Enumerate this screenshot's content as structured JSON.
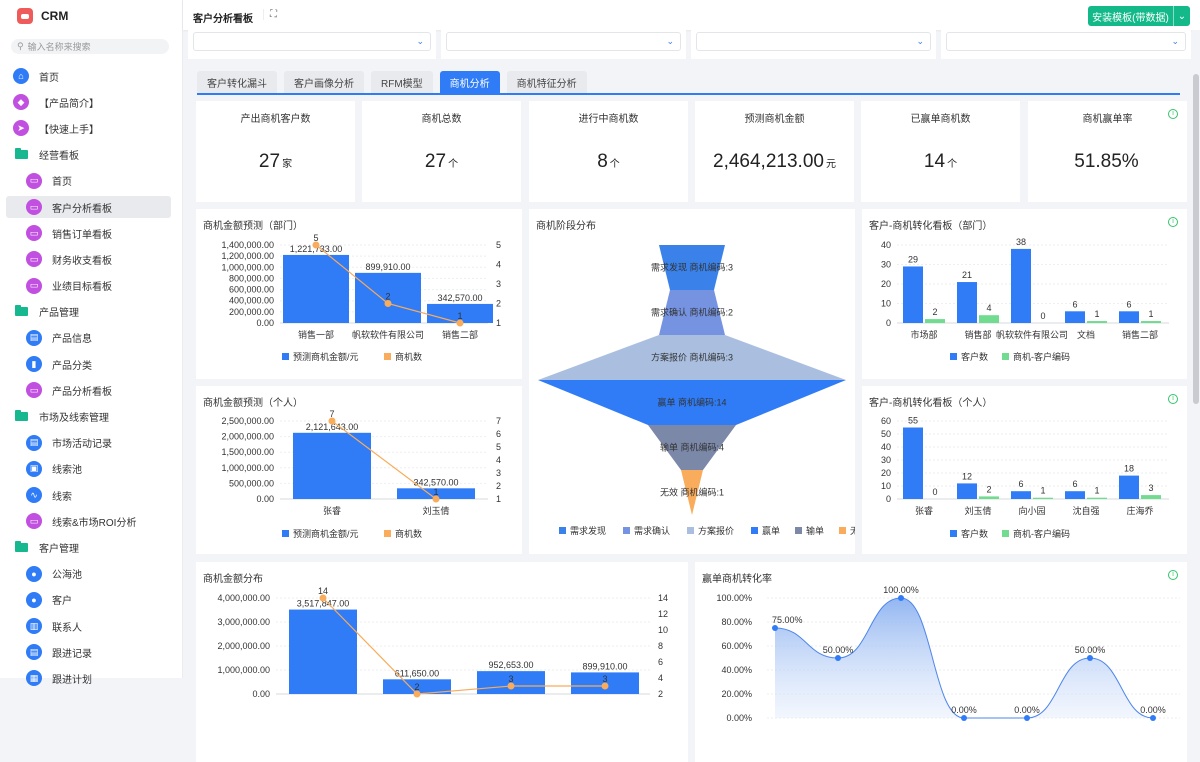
{
  "app": {
    "name": "CRM",
    "search_placeholder": "输入名称来搜索"
  },
  "sidebar": {
    "items": [
      {
        "label": "首页",
        "type": "top",
        "icon": "home-icon",
        "glyph": "⌂",
        "color": "#2f7cf6"
      },
      {
        "label": "【产品简介】",
        "type": "top",
        "icon": "tag-icon",
        "glyph": "◆",
        "color": "#c14fe0"
      },
      {
        "label": "【快速上手】",
        "type": "top",
        "icon": "send-icon",
        "glyph": "➤",
        "color": "#c14fe0"
      },
      {
        "label": "经营看板",
        "type": "group",
        "icon": "folder-icon"
      },
      {
        "label": "首页",
        "type": "sub",
        "icon": "dashboard-icon",
        "glyph": "▭",
        "color": "#c14fe0"
      },
      {
        "label": "客户分析看板",
        "type": "sub",
        "icon": "dashboard-icon",
        "glyph": "▭",
        "color": "#c14fe0",
        "active": true
      },
      {
        "label": "销售订单看板",
        "type": "sub",
        "icon": "dashboard-icon",
        "glyph": "▭",
        "color": "#c14fe0"
      },
      {
        "label": "财务收支看板",
        "type": "sub",
        "icon": "dashboard-icon",
        "glyph": "▭",
        "color": "#c14fe0"
      },
      {
        "label": "业绩目标看板",
        "type": "sub",
        "icon": "dashboard-icon",
        "glyph": "▭",
        "color": "#c14fe0"
      },
      {
        "label": "产品管理",
        "type": "group",
        "icon": "folder-icon"
      },
      {
        "label": "产品信息",
        "type": "sub",
        "icon": "document-icon",
        "glyph": "▤",
        "color": "#2f7cf6"
      },
      {
        "label": "产品分类",
        "type": "sub",
        "icon": "bookmark-icon",
        "glyph": "▮",
        "color": "#2f7cf6"
      },
      {
        "label": "产品分析看板",
        "type": "sub",
        "icon": "dashboard-icon",
        "glyph": "▭",
        "color": "#c14fe0"
      },
      {
        "label": "市场及线索管理",
        "type": "group",
        "icon": "folder-icon"
      },
      {
        "label": "市场活动记录",
        "type": "sub",
        "icon": "document-icon",
        "glyph": "▤",
        "color": "#2f7cf6"
      },
      {
        "label": "线索池",
        "type": "sub",
        "icon": "pool-icon",
        "glyph": "▣",
        "color": "#2f7cf6"
      },
      {
        "label": "线索",
        "type": "sub",
        "icon": "route-icon",
        "glyph": "∿",
        "color": "#2f7cf6"
      },
      {
        "label": "线索&市场ROI分析",
        "type": "sub",
        "icon": "dashboard-icon",
        "glyph": "▭",
        "color": "#c14fe0"
      },
      {
        "label": "客户管理",
        "type": "group",
        "icon": "folder-icon"
      },
      {
        "label": "公海池",
        "type": "sub",
        "icon": "user-icon",
        "glyph": "●",
        "color": "#2f7cf6"
      },
      {
        "label": "客户",
        "type": "sub",
        "icon": "user-icon",
        "glyph": "●",
        "color": "#2f7cf6"
      },
      {
        "label": "联系人",
        "type": "sub",
        "icon": "contact-icon",
        "glyph": "▥",
        "color": "#2f7cf6"
      },
      {
        "label": "跟进记录",
        "type": "sub",
        "icon": "record-icon",
        "glyph": "▤",
        "color": "#2f7cf6"
      },
      {
        "label": "跟进计划",
        "type": "sub",
        "icon": "plan-icon",
        "glyph": "▦",
        "color": "#2f7cf6"
      }
    ]
  },
  "header": {
    "title": "客户分析看板",
    "install_label": "安装模板(带数据)"
  },
  "tabs": [
    {
      "label": "客户转化漏斗"
    },
    {
      "label": "客户画像分析"
    },
    {
      "label": "RFM模型"
    },
    {
      "label": "商机分析",
      "active": true
    },
    {
      "label": "商机特征分析"
    }
  ],
  "kpis": [
    {
      "title": "产出商机客户数",
      "value": "27",
      "unit": "家"
    },
    {
      "title": "商机总数",
      "value": "27",
      "unit": "个"
    },
    {
      "title": "进行中商机数",
      "value": "8",
      "unit": "个"
    },
    {
      "title": "预测商机金额",
      "value": "2,464,213.00",
      "unit": "元"
    },
    {
      "title": "已赢单商机数",
      "value": "14",
      "unit": "个"
    },
    {
      "title": "商机赢单率",
      "value": "51.85%",
      "unit": ""
    }
  ],
  "colors": {
    "blue": "#2f7cf6",
    "orange": "#f8ac5c",
    "green": "#71db8f",
    "accent": "#14b98a"
  },
  "chart_data": [
    {
      "id": "dept",
      "type": "bar+line",
      "title": "商机金额预测（部门）",
      "categories": [
        "销售一部",
        "帆软软件有限公司",
        "销售二部"
      ],
      "series": [
        {
          "name": "预测商机金额/元",
          "type": "bar",
          "values": [
            1221733,
            899910,
            342570
          ]
        },
        {
          "name": "商机数",
          "type": "line",
          "values": [
            5,
            2,
            1
          ]
        }
      ],
      "y_ticks": [
        0,
        200000,
        400000,
        600000,
        800000,
        1000000,
        1200000,
        1400000
      ],
      "ylim": [
        0,
        1400000
      ],
      "y2_ticks": [
        1,
        2,
        3,
        4,
        5
      ],
      "y2lim": [
        1,
        5
      ]
    },
    {
      "id": "person",
      "type": "bar+line",
      "title": "商机金额预测（个人）",
      "categories": [
        "张睿",
        "刘玉倩"
      ],
      "series": [
        {
          "name": "预测商机金额/元",
          "type": "bar",
          "values": [
            2121643,
            342570
          ]
        },
        {
          "name": "商机数",
          "type": "line",
          "values": [
            7,
            1
          ]
        }
      ],
      "y_ticks": [
        0,
        500000,
        1000000,
        1500000,
        2000000,
        2500000
      ],
      "ylim": [
        0,
        2500000
      ],
      "y2_ticks": [
        1,
        2,
        3,
        4,
        5,
        6,
        7
      ],
      "y2lim": [
        1,
        7
      ]
    },
    {
      "id": "funnel",
      "type": "funnel",
      "title": "商机阶段分布",
      "stages": [
        {
          "name": "需求发现",
          "value": 3,
          "color": "#3a82ea"
        },
        {
          "name": "需求确认",
          "value": 2,
          "color": "#7593e0"
        },
        {
          "name": "方案报价",
          "value": 3,
          "color": "#aabfdf"
        },
        {
          "name": "赢单",
          "value": 14,
          "color": "#2f7cf6"
        },
        {
          "name": "输单",
          "value": 4,
          "color": "#7b88a8"
        },
        {
          "name": "无效",
          "value": 1,
          "color": "#f8ac5c"
        }
      ],
      "label_suffix": "商机编码"
    },
    {
      "id": "cdept",
      "type": "bar",
      "title": "客户-商机转化看板（部门）",
      "categories": [
        "市场部",
        "销售部",
        "帆软软件有限公司",
        "文档",
        "销售二部"
      ],
      "series": [
        {
          "name": "客户数",
          "values": [
            29,
            21,
            38,
            6,
            6
          ]
        },
        {
          "name": "商机-客户编码",
          "values": [
            2,
            4,
            0,
            1,
            1
          ]
        }
      ],
      "y_ticks": [
        0,
        10,
        20,
        30,
        40
      ],
      "ylim": [
        0,
        40
      ]
    },
    {
      "id": "cperson",
      "type": "bar",
      "title": "客户-商机转化看板（个人）",
      "categories": [
        "张睿",
        "刘玉倩",
        "向小园",
        "沈自强",
        "庄海乔"
      ],
      "series": [
        {
          "name": "客户数",
          "values": [
            55,
            12,
            6,
            6,
            18
          ]
        },
        {
          "name": "商机-客户编码",
          "values": [
            0,
            2,
            1,
            1,
            3
          ]
        }
      ],
      "y_ticks": [
        0,
        10,
        20,
        30,
        40,
        50,
        60
      ],
      "ylim": [
        0,
        60
      ]
    },
    {
      "id": "dist",
      "type": "bar+line",
      "title": "商机金额分布",
      "categories": [
        "",
        "",
        "",
        ""
      ],
      "series": [
        {
          "name": "商机金额",
          "type": "bar",
          "values": [
            3517847,
            611650,
            952653,
            899910
          ]
        },
        {
          "name": "商机数",
          "type": "line",
          "values": [
            14,
            2,
            3,
            3
          ]
        }
      ],
      "y_ticks": [
        0,
        1000000,
        2000000,
        3000000,
        4000000
      ],
      "ylim": [
        0,
        4000000
      ],
      "y2_ticks": [
        2,
        4,
        6,
        8,
        10,
        12,
        14
      ],
      "y2lim": [
        2,
        14
      ]
    },
    {
      "id": "winrate",
      "type": "area",
      "title": "赢单商机转化率",
      "values": [
        75,
        50,
        100,
        0,
        0,
        50,
        0
      ],
      "y_ticks": [
        0,
        20,
        40,
        60,
        80,
        100
      ],
      "ylim": [
        0,
        100
      ]
    }
  ]
}
